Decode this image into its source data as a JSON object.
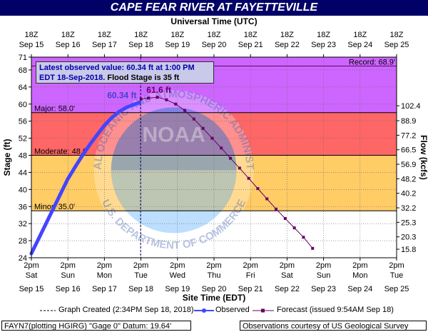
{
  "title": "CAPE FEAR RIVER AT FAYETTEVILLE",
  "chart_data": {
    "type": "line",
    "top_axis_title": "Universal Time (UTC)",
    "bottom_axis_title": "Site Time (EDT)",
    "ylabel_left": "Stage (ft)",
    "ylabel_right": "Flow (kcfs)",
    "ylim": [
      24,
      71
    ],
    "y_ticks": [
      24,
      28,
      32,
      36,
      40,
      44,
      48,
      52,
      56,
      60,
      64,
      68,
      71
    ],
    "flow_ticks": [
      {
        "stage": 26,
        "label": "15.8"
      },
      {
        "stage": 28.9,
        "label": "20.3"
      },
      {
        "stage": 32.3,
        "label": "25.3"
      },
      {
        "stage": 35.7,
        "label": "32.2"
      },
      {
        "stage": 39.1,
        "label": "40.2"
      },
      {
        "stage": 42.5,
        "label": "48.2"
      },
      {
        "stage": 45.9,
        "label": "56.9"
      },
      {
        "stage": 49.3,
        "label": "66.5"
      },
      {
        "stage": 52.7,
        "label": "77.2"
      },
      {
        "stage": 56.1,
        "label": "88.9"
      },
      {
        "stage": 59.6,
        "label": "102.4"
      }
    ],
    "top_ticks": [
      {
        "l1": "18Z",
        "l2": "Sep 15"
      },
      {
        "l1": "18Z",
        "l2": "Sep 16"
      },
      {
        "l1": "18Z",
        "l2": "Sep 17"
      },
      {
        "l1": "18Z",
        "l2": "Sep 18"
      },
      {
        "l1": "18Z",
        "l2": "Sep 19"
      },
      {
        "l1": "18Z",
        "l2": "Sep 20"
      },
      {
        "l1": "18Z",
        "l2": "Sep 21"
      },
      {
        "l1": "18Z",
        "l2": "Sep 22"
      },
      {
        "l1": "18Z",
        "l2": "Sep 23"
      },
      {
        "l1": "18Z",
        "l2": "Sep 24"
      },
      {
        "l1": "18Z",
        "l2": "Sep 25"
      }
    ],
    "bottom_ticks": [
      {
        "l1": "2pm",
        "l2": "Sat",
        "l3": "Sep 15"
      },
      {
        "l1": "2pm",
        "l2": "Sun",
        "l3": "Sep 16"
      },
      {
        "l1": "2pm",
        "l2": "Mon",
        "l3": "Sep 17"
      },
      {
        "l1": "2pm",
        "l2": "Tue",
        "l3": "Sep 18"
      },
      {
        "l1": "2pm",
        "l2": "Wed",
        "l3": "Sep 19"
      },
      {
        "l1": "2pm",
        "l2": "Thu",
        "l3": "Sep 20"
      },
      {
        "l1": "2pm",
        "l2": "Fri",
        "l3": "Sep 21"
      },
      {
        "l1": "2pm",
        "l2": "Sat",
        "l3": "Sep 22"
      },
      {
        "l1": "2pm",
        "l2": "Sun",
        "l3": "Sep 23"
      },
      {
        "l1": "2pm",
        "l2": "Mon",
        "l3": "Sep 24"
      },
      {
        "l1": "2pm",
        "l2": "Tue",
        "l3": "Sep 25"
      }
    ],
    "x_range_days": [
      0,
      10
    ],
    "flood_bands": [
      {
        "name": "Minor",
        "label": "Minor: 35.0'",
        "from": 35,
        "to": 48,
        "color": "#ffcc66"
      },
      {
        "name": "Moderate",
        "label": "Moderate: 48.0'",
        "from": 48,
        "to": 58,
        "color": "#ff6666"
      },
      {
        "name": "Major",
        "label": "Major: 58.0'",
        "from": 58,
        "to": 71,
        "color": "#cc66ff"
      }
    ],
    "action_band": {
      "from": 24,
      "to": 35,
      "color": "#ffffff"
    },
    "record": {
      "value": 68.9,
      "label": "Record: 68.9'"
    },
    "graph_created_day": 2.99,
    "observed": {
      "name": "Observed",
      "color": "#4444ff",
      "x": [
        0.0,
        0.2,
        0.4,
        0.6,
        0.8,
        1.0,
        1.2,
        1.4,
        1.6,
        1.8,
        2.0,
        2.2,
        2.4,
        2.6,
        2.8,
        2.96
      ],
      "y": [
        25.0,
        28.5,
        32.0,
        35.5,
        39.0,
        42.5,
        45.3,
        48.0,
        50.5,
        52.8,
        55.0,
        56.8,
        58.2,
        59.2,
        59.9,
        60.34
      ]
    },
    "forecast": {
      "name": "Forecast",
      "color": "#660066",
      "x": [
        3.0,
        3.2,
        3.45,
        3.7,
        3.95,
        4.2,
        4.45,
        4.7,
        4.95,
        5.2,
        5.45,
        5.7,
        5.95,
        6.2,
        6.45,
        6.7,
        6.95,
        7.2,
        7.45,
        7.7
      ],
      "y": [
        61.2,
        61.4,
        61.6,
        61.0,
        60.0,
        58.5,
        56.5,
        54.3,
        52.0,
        49.7,
        47.3,
        45.0,
        42.6,
        40.2,
        37.8,
        35.4,
        33.2,
        31.0,
        28.8,
        26.2
      ]
    },
    "labels": {
      "observed_value": "60.34 ft",
      "forecast_peak": "61.6 ft"
    }
  },
  "callout": {
    "line1": "Latest observed value: 60.34 ft at 1:00 PM",
    "line2": "EDT 18-Sep-2018.",
    "line2_black": " Flood Stage is 35 ft"
  },
  "legend": {
    "graph_created": "Graph Created (2:34PM Sep 18, 2018)",
    "observed": "Observed",
    "forecast": "Forecast (issued 9:54AM Sep 18)"
  },
  "footer": {
    "left": "FAYN7(plotting HGIRG) \"Gage 0\" Datum: 19.64'",
    "right": "Observations courtesy of US Geological Survey"
  },
  "watermark": {
    "ring_top": "NATIONAL OCEANIC AND ATMOSPHERIC ADMINISTRATION",
    "ring_bottom": "U.S. DEPARTMENT OF COMMERCE",
    "center": "NOAA"
  },
  "colors": {
    "title_bg": "#000066",
    "grid": "#555555"
  }
}
